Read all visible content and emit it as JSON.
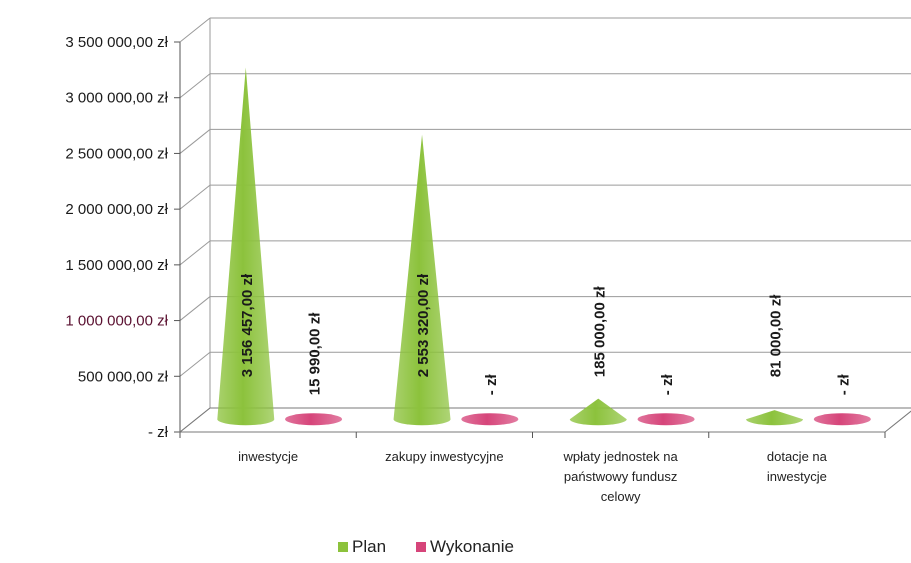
{
  "chart_data": {
    "type": "bar",
    "bar_shape": "cone",
    "categories": [
      "inwestycje",
      "zakupy inwestycyjne",
      "wpłaty jednostek na państwowy fundusz celowy",
      "dotacje na inwestycje"
    ],
    "category_lines": [
      [
        "inwestycje"
      ],
      [
        "zakupy inwestycyjne"
      ],
      [
        "wpłaty jednostek na",
        "państwowy fundusz",
        "celowy"
      ],
      [
        "dotacje na",
        "inwestycje"
      ]
    ],
    "series": [
      {
        "name": "Plan",
        "color": "#8cc23c",
        "values": [
          3156457.0,
          2553320.0,
          185000.0,
          81000.0
        ],
        "labels": [
          "3 156 457,00 zł",
          "2 553 320,00 zł",
          "185 000,00 zł",
          "81 000,00 zł"
        ]
      },
      {
        "name": "Wykonanie",
        "color": "#d6457a",
        "values": [
          15990.0,
          0,
          0,
          0
        ],
        "labels": [
          "15 990,00 zł",
          "- zł",
          "- zł",
          "- zł"
        ]
      }
    ],
    "ylim": [
      0,
      3500000
    ],
    "yticks": [
      {
        "value": 0,
        "label": "-  zł"
      },
      {
        "value": 500000,
        "label": "500 000,00 zł"
      },
      {
        "value": 1000000,
        "label": "1 000 000,00 zł"
      },
      {
        "value": 1500000,
        "label": "1 500 000,00 zł"
      },
      {
        "value": 2000000,
        "label": "2 000 000,00 zł"
      },
      {
        "value": 2500000,
        "label": "2 500 000,00 zł"
      },
      {
        "value": 3000000,
        "label": "3 000 000,00 zł"
      },
      {
        "value": 3500000,
        "label": "3 500 000,00 zł"
      }
    ],
    "grid": true,
    "legend": "bottom",
    "title": "",
    "xlabel": "",
    "ylabel": ""
  }
}
